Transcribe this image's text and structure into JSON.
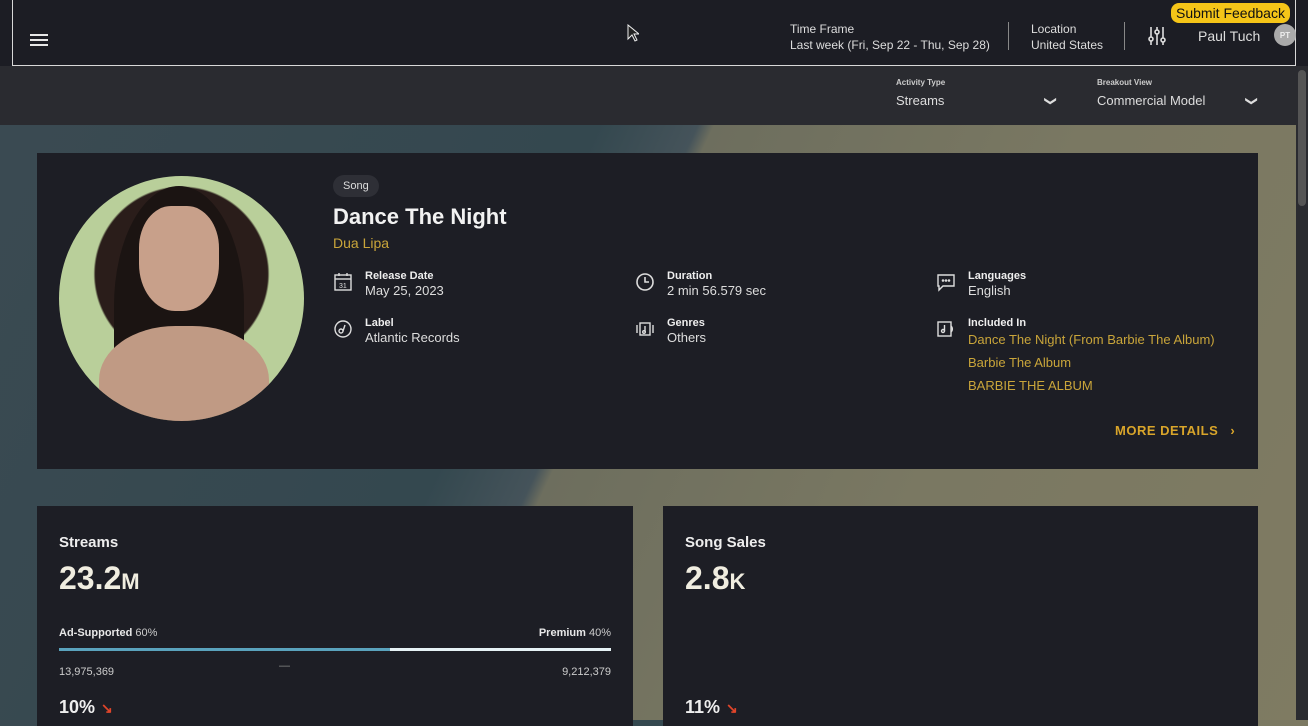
{
  "header": {
    "time_frame_label": "Time Frame",
    "time_frame_value": "Last week (Fri, Sep 22 - Thu, Sep 28)",
    "location_label": "Location",
    "location_value": "United States",
    "feedback": "Submit Feedback",
    "user": "Paul Tuch",
    "avatar": "PT"
  },
  "toolbar": {
    "activity_label": "Activity Type",
    "activity_value": "Streams",
    "breakout_label": "Breakout View",
    "breakout_value": "Commercial Model"
  },
  "song": {
    "chip": "Song",
    "title": "Dance The Night",
    "artist": "Dua Lipa",
    "release_label": "Release Date",
    "release_value": "May 25, 2023",
    "label_label": "Label",
    "label_value": "Atlantic Records",
    "duration_label": "Duration",
    "duration_value": "2 min 56.579 sec",
    "genres_label": "Genres",
    "genres_value": "Others",
    "languages_label": "Languages",
    "languages_value": "English",
    "included_label": "Included In",
    "included": [
      "Dance The Night (From Barbie The Album)",
      "Barbie The Album",
      "BARBIE THE ALBUM"
    ],
    "more": "MORE DETAILS"
  },
  "streams": {
    "title": "Streams",
    "value": "23.2",
    "unit": "M",
    "ad_label": "Ad-Supported",
    "ad_pct": "60%",
    "prem_label": "Premium",
    "prem_pct": "40%",
    "ad_count": "13,975,369",
    "prem_count": "9,212,379",
    "dash": "—",
    "ad_fraction": 0.6,
    "change": "10%",
    "trend": "down"
  },
  "sales": {
    "title": "Song Sales",
    "value": "2.8",
    "unit": "K",
    "change": "11%",
    "trend": "down"
  },
  "colors": {
    "accent": "#c9a53a",
    "feedback": "#f5c518",
    "trend_down": "#e0452a",
    "ad_bar": "#5aa3bd",
    "premium_bar": "#e6f2f5"
  }
}
